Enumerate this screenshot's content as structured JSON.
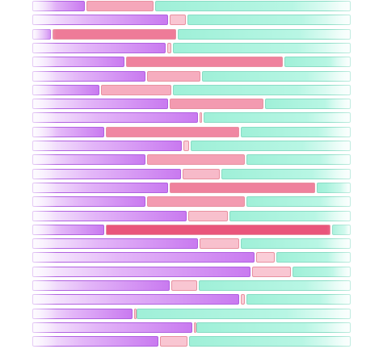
{
  "palette": {
    "purple": "#c97af0",
    "pink_light": "#fbd3dc",
    "pink_strong": "#e9557b",
    "teal": "#a6f1dc",
    "background": "#ffffff"
  },
  "rows": [
    {
      "a": 105,
      "b": 190,
      "t": 0.35
    },
    {
      "a": 208,
      "b": 230,
      "t": 0.1
    },
    {
      "a": 63,
      "b": 218,
      "t": 0.7
    },
    {
      "a": 205,
      "b": 212,
      "t": 0.05
    },
    {
      "a": 154,
      "b": 350,
      "t": 0.65
    },
    {
      "a": 180,
      "b": 248,
      "t": 0.3
    },
    {
      "a": 123,
      "b": 212,
      "t": 0.3
    },
    {
      "a": 208,
      "b": 326,
      "t": 0.45
    },
    {
      "a": 245,
      "b": 250,
      "t": 0.05
    },
    {
      "a": 129,
      "b": 296,
      "t": 0.6
    },
    {
      "a": 225,
      "b": 234,
      "t": 0.05
    },
    {
      "a": 180,
      "b": 303,
      "t": 0.4
    },
    {
      "a": 224,
      "b": 272,
      "t": 0.2
    },
    {
      "a": 208,
      "b": 390,
      "t": 0.65
    },
    {
      "a": 180,
      "b": 303,
      "t": 0.45
    },
    {
      "a": 231,
      "b": 282,
      "t": 0.15
    },
    {
      "a": 129,
      "b": 409,
      "t": 1.0
    },
    {
      "a": 245,
      "b": 296,
      "t": 0.15
    },
    {
      "a": 315,
      "b": 340,
      "t": 0.05
    },
    {
      "a": 310,
      "b": 360,
      "t": 0.1
    },
    {
      "a": 210,
      "b": 244,
      "t": 0.1
    },
    {
      "a": 296,
      "b": 303,
      "t": 0.05
    },
    {
      "a": 164,
      "b": 167,
      "t": 0.05
    },
    {
      "a": 238,
      "b": 241,
      "t": 0.05
    },
    {
      "a": 196,
      "b": 232,
      "t": 0.1
    }
  ]
}
